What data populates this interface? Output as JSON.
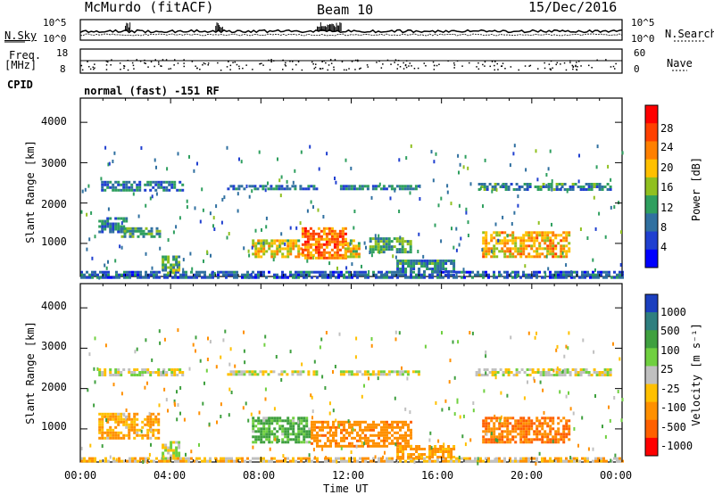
{
  "header": {
    "station": "McMurdo (fitACF)",
    "beam": "Beam 10",
    "date": "15/Dec/2016"
  },
  "noise_panel": {
    "left_label": "N.Sky",
    "right_label": "N.Search",
    "tick_top": "10^5",
    "tick_bottom": "10^0",
    "right_tick_top": "10^5",
    "right_tick_bottom": "10^0"
  },
  "freq_panel": {
    "left_label_1": "Freq.",
    "left_label_2": "[MHz]",
    "tick_top": "18",
    "tick_bottom": "8",
    "right_label": "Nave",
    "right_tick_top": "60",
    "right_tick_bottom": "0"
  },
  "cpid_panel": {
    "left_label": "CPID",
    "text": "normal (fast) -151 RF"
  },
  "power_panel": {
    "ylabel": "Slant Range [km]",
    "yticks": [
      "4000",
      "3000",
      "2000",
      "1000"
    ],
    "cbar_label": "Power [dB]",
    "cbar_ticks": [
      "28",
      "24",
      "20",
      "16",
      "12",
      "8",
      "4"
    ],
    "cbar_colors": [
      "#ff0000",
      "#ff4000",
      "#ff8000",
      "#ffc000",
      "#90c020",
      "#2f9f5f",
      "#3070a0",
      "#2040d0",
      "#0000ff"
    ]
  },
  "velocity_panel": {
    "ylabel": "Slant Range [km]",
    "yticks": [
      "4000",
      "3000",
      "2000",
      "1000"
    ],
    "cbar_label": "Velocity [m s⁻¹]",
    "cbar_ticks": [
      "1000",
      "500",
      "100",
      "25",
      "-25",
      "-100",
      "-500",
      "-1000"
    ],
    "cbar_colors": [
      "#1b3fbf",
      "#2f7f7f",
      "#3fa03f",
      "#70d040",
      "#c0c0c0",
      "#ffc000",
      "#ff9000",
      "#ff6000",
      "#ff0000"
    ]
  },
  "xaxis": {
    "label": "Time UT",
    "ticks": [
      "00:00",
      "04:00",
      "08:00",
      "12:00",
      "16:00",
      "20:00",
      "00:00"
    ]
  },
  "chart_data": [
    {
      "type": "heatmap",
      "title": "Power",
      "xlabel": "Time UT",
      "ylabel": "Slant Range [km]",
      "xlim": [
        0,
        24
      ],
      "ylim": [
        180,
        4600
      ],
      "colorbar": {
        "label": "Power [dB]",
        "ticks": [
          4,
          8,
          12,
          16,
          20,
          24,
          28
        ],
        "range": [
          0,
          30
        ]
      },
      "regions": [
        {
          "t0": 0.0,
          "t1": 24.0,
          "r0": 180,
          "r1": 320,
          "value": 6
        },
        {
          "t0": 0.8,
          "t1": 4.5,
          "r0": 2350,
          "r1": 2550,
          "value": 8
        },
        {
          "t0": 6.5,
          "t1": 10.5,
          "r0": 2350,
          "r1": 2450,
          "value": 8
        },
        {
          "t0": 11.5,
          "t1": 15.0,
          "r0": 2350,
          "r1": 2450,
          "value": 8
        },
        {
          "t0": 17.5,
          "t1": 23.5,
          "r0": 2350,
          "r1": 2500,
          "value": 9
        },
        {
          "t0": 0.8,
          "t1": 2.0,
          "r0": 1300,
          "r1": 1650,
          "value": 8
        },
        {
          "t0": 1.8,
          "t1": 3.5,
          "r0": 1150,
          "r1": 1400,
          "value": 11
        },
        {
          "t0": 7.6,
          "t1": 9.8,
          "r0": 650,
          "r1": 1100,
          "value": 18
        },
        {
          "t0": 9.8,
          "t1": 11.7,
          "r0": 650,
          "r1": 1400,
          "value": 24
        },
        {
          "t0": 11.7,
          "t1": 12.4,
          "r0": 700,
          "r1": 1100,
          "value": 17
        },
        {
          "t0": 12.8,
          "t1": 14.6,
          "r0": 800,
          "r1": 1150,
          "value": 12
        },
        {
          "t0": 14.0,
          "t1": 16.5,
          "r0": 300,
          "r1": 600,
          "value": 9
        },
        {
          "t0": 17.8,
          "t1": 21.6,
          "r0": 650,
          "r1": 1300,
          "value": 20
        },
        {
          "t0": 3.6,
          "t1": 4.4,
          "r0": 250,
          "r1": 700,
          "value": 12
        }
      ]
    },
    {
      "type": "heatmap",
      "title": "Velocity",
      "xlabel": "Time UT",
      "ylabel": "Slant Range [km]",
      "xlim": [
        0,
        24
      ],
      "ylim": [
        180,
        4600
      ],
      "colorbar": {
        "label": "Velocity [m s-1]",
        "ticks": [
          1000,
          500,
          100,
          25,
          -25,
          -100,
          -500,
          -1000
        ]
      },
      "regions": [
        {
          "t0": 0.0,
          "t1": 24.0,
          "r0": 180,
          "r1": 300,
          "value": -40
        },
        {
          "t0": 0.8,
          "t1": 4.5,
          "r0": 2350,
          "r1": 2500,
          "value": 0
        },
        {
          "t0": 6.5,
          "t1": 10.5,
          "r0": 2350,
          "r1": 2450,
          "value": 0
        },
        {
          "t0": 11.5,
          "t1": 15.0,
          "r0": 2350,
          "r1": 2450,
          "value": 0
        },
        {
          "t0": 17.5,
          "t1": 23.5,
          "r0": 2350,
          "r1": 2500,
          "value": 0
        },
        {
          "t0": 0.8,
          "t1": 3.5,
          "r0": 800,
          "r1": 1400,
          "value": -80
        },
        {
          "t0": 7.6,
          "t1": 10.2,
          "r0": 650,
          "r1": 1300,
          "value": 80
        },
        {
          "t0": 10.2,
          "t1": 14.6,
          "r0": 600,
          "r1": 1200,
          "value": -150
        },
        {
          "t0": 14.0,
          "t1": 16.5,
          "r0": 300,
          "r1": 600,
          "value": -90
        },
        {
          "t0": 17.8,
          "t1": 21.6,
          "r0": 650,
          "r1": 1300,
          "value": -200
        },
        {
          "t0": 3.6,
          "t1": 4.4,
          "r0": 250,
          "r1": 700,
          "value": 0
        }
      ]
    }
  ]
}
